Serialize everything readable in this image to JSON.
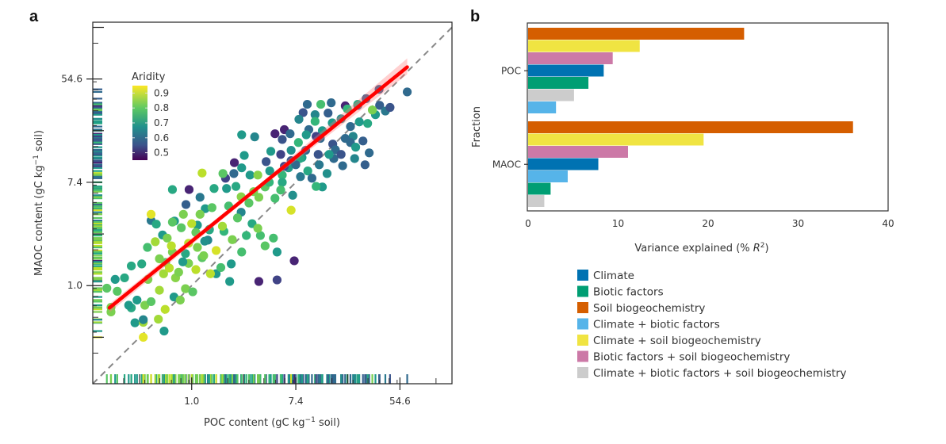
{
  "chart_data": [
    {
      "panel": "a",
      "type": "scatter",
      "title": "",
      "xlabel": "POC content (gC kg⁻¹ soil)",
      "ylabel": "MAOC content (gC kg⁻¹ soil)",
      "xscale": "log",
      "yscale": "log",
      "x_ticks": [
        {
          "value_ln": 0,
          "label": "1.0"
        },
        {
          "value_ln": 2,
          "label": "7.4"
        },
        {
          "value_ln": 4,
          "label": "54.6"
        }
      ],
      "y_ticks": [
        {
          "value_ln": 0,
          "label": "1.0"
        },
        {
          "value_ln": 2,
          "label": "7.4"
        },
        {
          "value_ln": 4,
          "label": "54.6"
        }
      ],
      "xlim_ln": [
        -1.9,
        5.0
      ],
      "ylim_ln": [
        -1.9,
        5.1
      ],
      "grid": false,
      "colorbar": {
        "title": "Aridity",
        "ticks": [
          "0.9",
          "0.8",
          "0.7",
          "0.6",
          "0.5"
        ],
        "tick_values": [
          0.9,
          0.8,
          0.7,
          0.6,
          0.5
        ],
        "range": [
          0.45,
          0.95
        ],
        "colormap": "viridis",
        "placement": "top-left"
      },
      "reference_line": {
        "type": "1:1",
        "style": "dashed",
        "color": "#888888"
      },
      "regression_line": {
        "color": "#ff0000",
        "x_ln": [
          -1.58,
          4.14
        ],
        "y_ln": [
          -0.43,
          4.23
        ],
        "confidence_band": true
      },
      "rugs": [
        "bottom",
        "left"
      ],
      "point_fields": [
        "ln_poc",
        "ln_maoc",
        "aridity"
      ],
      "points": [
        [
          4.14,
          3.75,
          0.62
        ],
        [
          3.6,
          3.8,
          0.6
        ],
        [
          3.61,
          3.49,
          0.6
        ],
        [
          3.35,
          3.62,
          0.6
        ],
        [
          3.19,
          3.49,
          0.57
        ],
        [
          2.95,
          3.48,
          0.5
        ],
        [
          3.19,
          3.51,
          0.75
        ],
        [
          2.99,
          3.42,
          0.78
        ],
        [
          2.68,
          3.54,
          0.62
        ],
        [
          2.22,
          3.51,
          0.62
        ],
        [
          2.48,
          3.51,
          0.8
        ],
        [
          2.14,
          3.35,
          0.58
        ],
        [
          2.37,
          3.31,
          0.68
        ],
        [
          2.06,
          3.22,
          0.68
        ],
        [
          2.37,
          3.18,
          0.78
        ],
        [
          1.78,
          3.02,
          0.5
        ],
        [
          2.25,
          3.02,
          0.62
        ],
        [
          2.7,
          3.15,
          0.72
        ],
        [
          2.51,
          3.0,
          0.72
        ],
        [
          2.2,
          2.92,
          0.72
        ],
        [
          1.89,
          2.94,
          0.62
        ],
        [
          3.1,
          2.89,
          0.68
        ],
        [
          2.95,
          2.85,
          0.62
        ],
        [
          2.47,
          2.85,
          0.62
        ],
        [
          2.71,
          2.74,
          0.58
        ],
        [
          3.05,
          2.77,
          0.62
        ],
        [
          3.29,
          2.8,
          0.6
        ],
        [
          2.76,
          2.63,
          0.62
        ],
        [
          3.15,
          2.68,
          0.72
        ],
        [
          2.43,
          2.54,
          0.58
        ],
        [
          2.73,
          2.46,
          0.62
        ],
        [
          2.05,
          2.77,
          0.78
        ],
        [
          1.6,
          2.94,
          0.5
        ],
        [
          1.74,
          2.83,
          0.58
        ],
        [
          1.21,
          2.88,
          0.68
        ],
        [
          0.96,
          2.92,
          0.72
        ],
        [
          1.91,
          2.62,
          0.7
        ],
        [
          1.52,
          2.6,
          0.72
        ],
        [
          2.12,
          2.48,
          0.72
        ],
        [
          1.91,
          2.42,
          0.58
        ],
        [
          1.71,
          2.54,
          0.55
        ],
        [
          1.43,
          2.4,
          0.58
        ],
        [
          1.01,
          2.52,
          0.72
        ],
        [
          0.82,
          2.38,
          0.5
        ],
        [
          0.65,
          2.08,
          0.55
        ],
        [
          0.81,
          2.17,
          0.62
        ],
        [
          0.96,
          2.28,
          0.72
        ],
        [
          1.12,
          2.14,
          0.72
        ],
        [
          1.5,
          2.22,
          0.72
        ],
        [
          1.86,
          2.28,
          0.72
        ],
        [
          2.08,
          2.46,
          0.75
        ],
        [
          1.74,
          2.14,
          0.78
        ],
        [
          2.6,
          2.17,
          0.7
        ],
        [
          2.51,
          1.91,
          0.72
        ],
        [
          2.23,
          2.22,
          0.75
        ],
        [
          2.39,
          1.92,
          0.78
        ],
        [
          1.41,
          1.91,
          0.82
        ],
        [
          1.6,
          1.69,
          0.8
        ],
        [
          1.19,
          1.82,
          0.85
        ],
        [
          0.95,
          1.72,
          0.86
        ],
        [
          1.27,
          2.14,
          0.86
        ],
        [
          0.6,
          2.17,
          0.82
        ],
        [
          0.95,
          1.42,
          0.68
        ],
        [
          0.67,
          1.88,
          0.72
        ],
        [
          0.43,
          1.88,
          0.75
        ],
        [
          0.26,
          1.49,
          0.72
        ],
        [
          -0.05,
          1.86,
          0.5
        ],
        [
          0.16,
          1.71,
          0.65
        ],
        [
          -0.37,
          1.86,
          0.75
        ],
        [
          -0.33,
          1.25,
          0.72
        ],
        [
          -0.78,
          1.26,
          0.65
        ],
        [
          -0.37,
          1.23,
          0.82
        ],
        [
          -0.11,
          1.57,
          0.6
        ],
        [
          0.11,
          1.17,
          0.72
        ],
        [
          0.31,
          0.88,
          0.68
        ],
        [
          -0.68,
          1.19,
          0.75
        ],
        [
          -0.56,
          0.98,
          0.72
        ],
        [
          0.34,
          1.09,
          0.8
        ],
        [
          0.62,
          1.05,
          0.78
        ],
        [
          0.88,
          1.31,
          0.82
        ],
        [
          1.16,
          1.2,
          0.75
        ],
        [
          1.32,
          0.97,
          0.8
        ],
        [
          1.41,
          0.77,
          0.82
        ],
        [
          1.27,
          1.11,
          0.85
        ],
        [
          1.64,
          0.65,
          0.72
        ],
        [
          1.91,
          1.46,
          0.92
        ],
        [
          1.97,
          0.48,
          0.5
        ],
        [
          1.64,
          0.11,
          0.55
        ],
        [
          1.29,
          0.08,
          0.5
        ],
        [
          0.76,
          0.42,
          0.72
        ],
        [
          0.73,
          0.08,
          0.72
        ],
        [
          0.47,
          0.23,
          0.72
        ],
        [
          0.2,
          0.54,
          0.82
        ],
        [
          0.11,
          0.74,
          0.85
        ],
        [
          0.25,
          0.86,
          0.7
        ],
        [
          -0.06,
          0.82,
          0.9
        ],
        [
          -0.12,
          0.62,
          0.75
        ],
        [
          -0.37,
          0.65,
          0.85
        ],
        [
          -0.5,
          0.45,
          0.82
        ],
        [
          -0.62,
          0.52,
          0.85
        ],
        [
          -0.85,
          0.74,
          0.8
        ],
        [
          -0.96,
          0.42,
          0.75
        ],
        [
          -1.16,
          0.38,
          0.75
        ],
        [
          -1.29,
          0.15,
          0.75
        ],
        [
          -1.47,
          0.12,
          0.72
        ],
        [
          -1.63,
          -0.05,
          0.82
        ],
        [
          -1.43,
          -0.11,
          0.82
        ],
        [
          -1.55,
          -0.51,
          0.85
        ],
        [
          -1.05,
          -0.28,
          0.72
        ],
        [
          -1.16,
          -0.43,
          0.75
        ],
        [
          -1.09,
          -0.72,
          0.72
        ],
        [
          -0.9,
          -0.38,
          0.85
        ],
        [
          -0.78,
          -0.31,
          0.82
        ],
        [
          -0.62,
          -0.09,
          0.88
        ],
        [
          -0.54,
          0.23,
          0.88
        ],
        [
          -0.31,
          0.15,
          0.86
        ],
        [
          -0.12,
          -0.06,
          0.85
        ],
        [
          0.02,
          -0.12,
          0.82
        ],
        [
          -0.34,
          -0.22,
          0.72
        ],
        [
          -0.64,
          -0.65,
          0.88
        ],
        [
          -0.51,
          -0.46,
          0.9
        ],
        [
          -0.93,
          -0.71,
          0.88
        ],
        [
          -0.53,
          -0.88,
          0.72
        ],
        [
          -0.22,
          -0.28,
          0.85
        ],
        [
          0.36,
          0.23,
          0.9
        ],
        [
          0.56,
          0.35,
          0.8
        ],
        [
          0.08,
          0.31,
          0.9
        ],
        [
          -0.06,
          0.43,
          0.85
        ],
        [
          -0.84,
          0.12,
          0.85
        ],
        [
          -0.17,
          0.46,
          0.72
        ],
        [
          -0.43,
          0.34,
          0.9
        ],
        [
          -0.25,
          0.26,
          0.85
        ],
        [
          -0.93,
          -0.66,
          0.68
        ],
        [
          -1.21,
          -0.38,
          0.72
        ],
        [
          -1.55,
          -0.42,
          0.85
        ],
        [
          -0.93,
          -1.0,
          0.93
        ],
        [
          -0.78,
          1.38,
          0.93
        ],
        [
          0.08,
          1.03,
          0.83
        ],
        [
          0.47,
          0.68,
          0.92
        ],
        [
          0.34,
          1.08,
          0.75
        ],
        [
          0.59,
          1.15,
          0.88
        ],
        [
          0.78,
          0.89,
          0.85
        ],
        [
          0.96,
          0.65,
          0.8
        ],
        [
          1.05,
          0.97,
          0.78
        ],
        [
          1.57,
          0.92,
          0.8
        ],
        [
          1.74,
          2.0,
          0.75
        ],
        [
          0.2,
          2.18,
          0.9
        ],
        [
          -0.16,
          1.38,
          0.85
        ],
        [
          0.23,
          0.58,
          0.85
        ],
        [
          -0.47,
          0.92,
          0.85
        ],
        [
          -0.7,
          0.85,
          0.88
        ],
        [
          -0.39,
          0.77,
          0.9
        ],
        [
          -0.2,
          1.12,
          0.82
        ],
        [
          0.0,
          1.2,
          0.9
        ],
        [
          0.16,
          1.38,
          0.85
        ],
        [
          0.39,
          1.51,
          0.82
        ],
        [
          0.71,
          1.54,
          0.8
        ],
        [
          0.85,
          1.92,
          0.75
        ],
        [
          1.1,
          1.6,
          0.82
        ],
        [
          1.29,
          1.71,
          0.85
        ],
        [
          1.49,
          2.0,
          0.78
        ],
        [
          1.71,
          1.85,
          0.8
        ],
        [
          1.94,
          1.75,
          0.7
        ],
        [
          2.09,
          2.11,
          0.65
        ],
        [
          2.31,
          2.08,
          0.62
        ],
        [
          2.45,
          2.34,
          0.65
        ],
        [
          2.9,
          2.32,
          0.62
        ],
        [
          2.64,
          2.54,
          0.72
        ],
        [
          2.87,
          2.54,
          0.58
        ],
        [
          3.13,
          2.46,
          0.68
        ],
        [
          3.33,
          2.34,
          0.6
        ],
        [
          3.41,
          2.57,
          0.62
        ],
        [
          3.72,
          3.38,
          0.65
        ],
        [
          3.81,
          3.45,
          0.58
        ],
        [
          3.53,
          3.31,
          0.72
        ],
        [
          3.38,
          3.14,
          0.75
        ],
        [
          3.47,
          3.4,
          0.85
        ],
        [
          3.22,
          3.17,
          0.72
        ],
        [
          3.05,
          3.08,
          0.62
        ],
        [
          2.87,
          3.23,
          0.7
        ],
        [
          2.62,
          3.34,
          0.6
        ],
        [
          2.39,
          2.89,
          0.55
        ],
        [
          2.19,
          2.62,
          0.62
        ],
        [
          2.0,
          2.34,
          0.62
        ],
        [
          1.78,
          2.31,
          0.55
        ]
      ]
    },
    {
      "panel": "b",
      "type": "bar",
      "orientation": "horizontal",
      "title": "",
      "xlabel": "Variance explained (% R²)",
      "ylabel": "Fraction",
      "xlim": [
        0,
        40
      ],
      "x_ticks": [
        "0",
        "10",
        "20",
        "30",
        "40"
      ],
      "categories": [
        "POC",
        "MAOC"
      ],
      "grid": false,
      "legend_placement": "bottom",
      "series": [
        {
          "name": "Climate",
          "color": "#0072b2",
          "values": {
            "POC": 8.4,
            "MAOC": 7.8
          }
        },
        {
          "name": "Biotic factors",
          "color": "#009e73",
          "values": {
            "POC": 6.7,
            "MAOC": 2.5
          }
        },
        {
          "name": "Soil biogeochemistry",
          "color": "#d55e00",
          "values": {
            "POC": 24.0,
            "MAOC": 36.1
          }
        },
        {
          "name": "Climate + biotic factors",
          "color": "#56b4e9",
          "values": {
            "POC": 3.1,
            "MAOC": 4.4
          }
        },
        {
          "name": "Climate + soil biogeochemistry",
          "color": "#f0e442",
          "values": {
            "POC": 12.4,
            "MAOC": 19.5
          }
        },
        {
          "name": "Biotic factors + soil biogeochemistry",
          "color": "#cc79a7",
          "values": {
            "POC": 9.4,
            "MAOC": 11.1
          }
        },
        {
          "name": "Climate + biotic factors + soil biogeochemistry",
          "color": "#cccccc",
          "values": {
            "POC": 5.1,
            "MAOC": 1.8
          }
        }
      ],
      "bar_order": {
        "POC": [
          "Soil biogeochemistry",
          "Climate + soil biogeochemistry",
          "Biotic factors + soil biogeochemistry",
          "Climate",
          "Biotic factors",
          "Climate + biotic factors + soil biogeochemistry",
          "Climate + biotic factors"
        ],
        "MAOC": [
          "Soil biogeochemistry",
          "Climate + soil biogeochemistry",
          "Biotic factors + soil biogeochemistry",
          "Climate",
          "Climate + biotic factors",
          "Biotic factors",
          "Climate + biotic factors + soil biogeochemistry"
        ]
      }
    }
  ],
  "panels": {
    "a_letter": "a",
    "b_letter": "b"
  }
}
